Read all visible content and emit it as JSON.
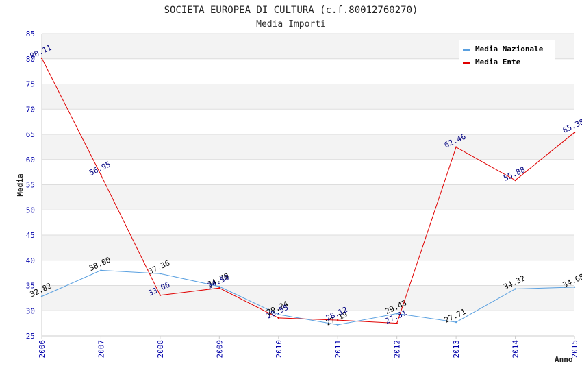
{
  "chart_data": {
    "type": "line",
    "title": "SOCIETA EUROPEA DI CULTURA (c.f.80012760270)",
    "subtitle": "Media Importi",
    "xlabel": "Anno",
    "ylabel": "Media",
    "ylim": [
      25,
      85
    ],
    "yticks": [
      "25",
      "30",
      "35",
      "40",
      "45",
      "50",
      "55",
      "60",
      "65",
      "70",
      "75",
      "80",
      "85"
    ],
    "categories": [
      "2006",
      "2007",
      "2008",
      "2009",
      "2010",
      "2011",
      "2012",
      "2013",
      "2014",
      "2015"
    ],
    "grid": true,
    "legend_position": "top-right",
    "series": [
      {
        "name": "Media Nazionale",
        "color": "#5aa0e0",
        "label_color": "#000000",
        "values": [
          32.82,
          38.0,
          37.36,
          34.79,
          29.24,
          27.19,
          29.43,
          27.71,
          34.32,
          34.68
        ],
        "labels": [
          "32.82",
          "38.00",
          "37.36",
          "34.79",
          "29.24",
          "27.19",
          "29.43",
          "27.71",
          "34.32",
          "34.68"
        ]
      },
      {
        "name": "Media Ente",
        "color": "#e00000",
        "label_color": "#000080",
        "values": [
          80.11,
          56.95,
          33.06,
          34.5,
          28.55,
          28.12,
          27.51,
          62.46,
          55.88,
          65.38
        ],
        "labels": [
          "80.11",
          "56.95",
          "33.06",
          "34.50",
          "28.55",
          "28.12",
          "27.51",
          "62.46",
          "55.88",
          "65.38"
        ]
      }
    ]
  }
}
